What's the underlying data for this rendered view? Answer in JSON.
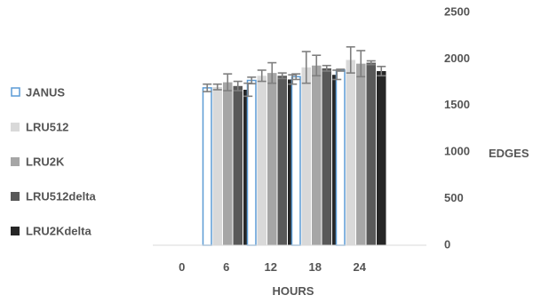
{
  "chart_data": {
    "type": "bar",
    "title": "",
    "xlabel": "HOURS",
    "ylabel": "EDGES",
    "categories": [
      "0",
      "6",
      "12",
      "18",
      "24"
    ],
    "ylim": [
      0,
      2500
    ],
    "yticks": [
      "0",
      "500",
      "1000",
      "1500",
      "2000",
      "2500"
    ],
    "y_axis_side": "right",
    "grid": false,
    "legend_position": "left",
    "series": [
      {
        "name": "JANUS",
        "values": [
          0,
          1690,
          1770,
          1810,
          1880
        ],
        "errors": [
          0,
          40,
          35,
          30,
          10
        ],
        "fill": "#ffffff",
        "stroke": "#5b9bd5"
      },
      {
        "name": "LRU512",
        "values": [
          0,
          1700,
          1820,
          1910,
          1990
        ],
        "errors": [
          0,
          30,
          60,
          170,
          140
        ],
        "fill": "#d9d9d9",
        "stroke": "#d9d9d9"
      },
      {
        "name": "LRU2K",
        "values": [
          0,
          1750,
          1850,
          1930,
          1950
        ],
        "errors": [
          0,
          90,
          110,
          110,
          140
        ],
        "fill": "#a6a6a6",
        "stroke": "#a6a6a6"
      },
      {
        "name": "LRU512delta",
        "values": [
          0,
          1710,
          1820,
          1900,
          1960
        ],
        "errors": [
          0,
          50,
          30,
          30,
          20
        ],
        "fill": "#595959",
        "stroke": "#595959"
      },
      {
        "name": "LRU2Kdelta",
        "values": [
          0,
          1670,
          1780,
          1830,
          1870
        ],
        "errors": [
          0,
          70,
          50,
          50,
          50
        ],
        "fill": "#262626",
        "stroke": "#262626"
      }
    ],
    "error_bar_color": "#7f7f7f"
  }
}
